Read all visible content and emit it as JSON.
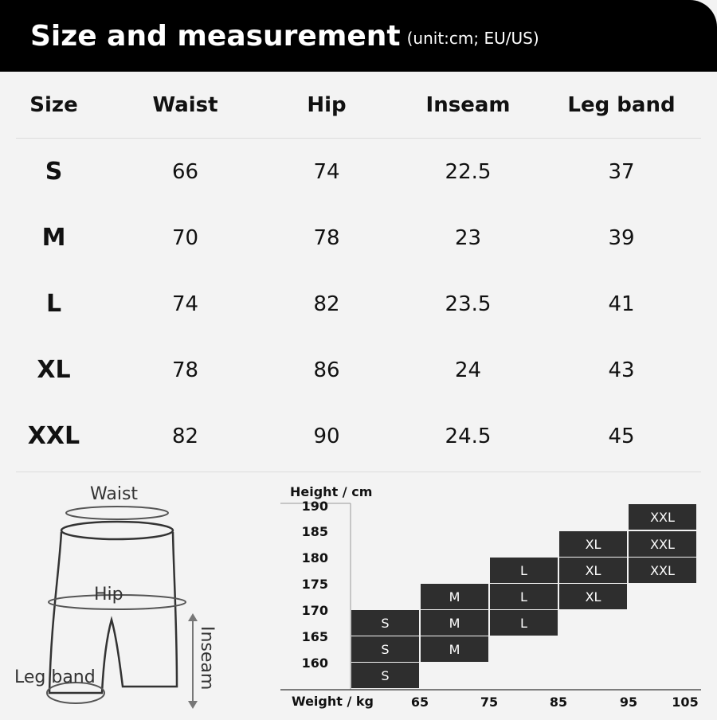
{
  "header": {
    "title": "Size and measurement",
    "unit": "(unit:cm; EU/US)"
  },
  "table": {
    "columns": [
      "Size",
      "Waist",
      "Hip",
      "Inseam",
      "Leg band"
    ],
    "rows": [
      [
        "S",
        "66",
        "74",
        "22.5",
        "37"
      ],
      [
        "M",
        "70",
        "78",
        "23",
        "39"
      ],
      [
        "L",
        "74",
        "82",
        "23.5",
        "41"
      ],
      [
        "XL",
        "78",
        "86",
        "24",
        "43"
      ],
      [
        "XXL",
        "82",
        "90",
        "24.5",
        "45"
      ]
    ]
  },
  "diagram": {
    "waist_label": "Waist",
    "hip_label": "Hip",
    "leg_band_label": "Leg band",
    "inseam_label": "Inseam"
  },
  "chart_data": {
    "type": "heatmap",
    "ylabel": "Height / cm",
    "xlabel": "Weight / kg",
    "x_ticks": [
      "65",
      "75",
      "85",
      "95",
      "105"
    ],
    "y_ticks": [
      "190",
      "185",
      "180",
      "175",
      "170",
      "165",
      "160"
    ],
    "cell_color": "#2e2e2e",
    "cells": [
      {
        "weight_from": 95,
        "weight_to": 105,
        "height": 190,
        "size": "XXL"
      },
      {
        "weight_from": 85,
        "weight_to": 95,
        "height": 180,
        "size": "XL"
      },
      {
        "weight_from": 95,
        "weight_to": 105,
        "height": 180,
        "size": "XXL"
      },
      {
        "weight_from": 75,
        "weight_to": 85,
        "height": 175,
        "size": "L"
      },
      {
        "weight_from": 85,
        "weight_to": 95,
        "height": 175,
        "size": "XL"
      },
      {
        "weight_from": 95,
        "weight_to": 105,
        "height": 175,
        "size": "XXL"
      },
      {
        "weight_from": 65,
        "weight_to": 75,
        "height": 172,
        "size": "M"
      },
      {
        "weight_from": 75,
        "weight_to": 85,
        "height": 172,
        "size": "L"
      },
      {
        "weight_from": 85,
        "weight_to": 95,
        "height": 172,
        "size": "XL"
      },
      {
        "weight_from": 55,
        "weight_to": 65,
        "height": 168,
        "size": "S"
      },
      {
        "weight_from": 65,
        "weight_to": 75,
        "height": 168,
        "size": "M"
      },
      {
        "weight_from": 75,
        "weight_to": 85,
        "height": 168,
        "size": "L"
      },
      {
        "weight_from": 55,
        "weight_to": 65,
        "height": 164,
        "size": "S"
      },
      {
        "weight_from": 65,
        "weight_to": 75,
        "height": 164,
        "size": "M"
      },
      {
        "weight_from": 55,
        "weight_to": 65,
        "height": 160,
        "size": "S"
      }
    ]
  }
}
